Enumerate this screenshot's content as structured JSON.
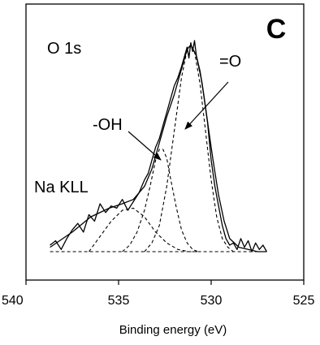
{
  "chart_data": {
    "type": "line",
    "panel_label": "C",
    "title": "O 1s",
    "xlabel": "Binding energy (eV)",
    "ylabel": "",
    "xlim": [
      540,
      525
    ],
    "ylim": [
      0,
      1
    ],
    "x_ticks": [
      540,
      535,
      530,
      525
    ],
    "grid": false,
    "annotations": [
      {
        "id": "oh",
        "text": "-OH",
        "points_to": [
          532.8,
          0.42
        ]
      },
      {
        "id": "eq-o",
        "text": "=O",
        "points_to": [
          531.1,
          0.58
        ]
      },
      {
        "id": "na-kll",
        "text": "Na KLL"
      }
    ],
    "series": [
      {
        "style": "solid",
        "x": [
          538.7,
          538.4,
          538.1,
          537.8,
          537.5,
          537.2,
          536.9,
          536.6,
          536.3,
          536.0,
          535.7,
          535.4,
          535.1,
          534.8,
          534.5,
          534.2,
          533.9,
          533.6,
          533.4,
          533.2,
          533.0,
          532.8,
          532.6,
          532.4,
          532.2,
          532.0,
          531.8,
          531.6,
          531.4,
          531.3,
          531.2,
          531.1,
          531.0,
          530.9,
          530.8,
          530.6,
          530.4,
          530.2,
          530.0,
          529.8,
          529.6,
          529.4,
          529.2,
          529.0,
          528.8,
          528.6,
          528.4,
          528.2,
          528.0,
          527.8,
          527.6,
          527.4,
          527.2,
          527.0
        ],
        "values": [
          0.03,
          0.05,
          0.01,
          0.06,
          0.1,
          0.13,
          0.09,
          0.17,
          0.14,
          0.22,
          0.18,
          0.21,
          0.2,
          0.24,
          0.19,
          0.23,
          0.27,
          0.33,
          0.36,
          0.42,
          0.48,
          0.52,
          0.58,
          0.64,
          0.7,
          0.76,
          0.8,
          0.85,
          0.91,
          0.94,
          0.89,
          0.96,
          0.92,
          0.97,
          0.9,
          0.83,
          0.72,
          0.6,
          0.42,
          0.3,
          0.21,
          0.12,
          0.06,
          0.03,
          0.04,
          0.01,
          0.06,
          0.02,
          0.05,
          0.0,
          0.04,
          0.01,
          0.03,
          0.0
        ]
      },
      {
        "style": "solid",
        "x": [
          538.7,
          537.5,
          536.5,
          535.5,
          534.8,
          534.2,
          533.6,
          533.2,
          532.8,
          532.4,
          532.0,
          531.6,
          531.3,
          531.1,
          530.8,
          530.5,
          530.2,
          529.9,
          529.6,
          529.3,
          529.0,
          528.5,
          528.0,
          527.5,
          527.0
        ],
        "values": [
          0.02,
          0.09,
          0.16,
          0.2,
          0.22,
          0.24,
          0.3,
          0.38,
          0.5,
          0.62,
          0.72,
          0.84,
          0.93,
          0.95,
          0.9,
          0.78,
          0.6,
          0.42,
          0.26,
          0.14,
          0.06,
          0.02,
          0.01,
          0.0,
          0.0
        ]
      },
      {
        "style": "dashed",
        "x": [
          536.6,
          536.0,
          535.4,
          534.8,
          534.2,
          533.6,
          533.0,
          532.4,
          531.8,
          531.2,
          530.6
        ],
        "values": [
          0.0,
          0.07,
          0.14,
          0.19,
          0.2,
          0.16,
          0.09,
          0.04,
          0.01,
          0.0,
          0.0
        ]
      },
      {
        "style": "dashed",
        "x": [
          534.8,
          534.4,
          534.0,
          533.6,
          533.3,
          533.0,
          532.8,
          532.6,
          532.4,
          532.2,
          531.9,
          531.6,
          531.3,
          531.0,
          530.7
        ],
        "values": [
          0.0,
          0.03,
          0.09,
          0.19,
          0.3,
          0.42,
          0.47,
          0.47,
          0.43,
          0.34,
          0.21,
          0.1,
          0.04,
          0.01,
          0.0
        ]
      },
      {
        "style": "dashed",
        "x": [
          533.6,
          533.2,
          532.8,
          532.4,
          532.0,
          531.6,
          531.3,
          531.1,
          530.9,
          530.6,
          530.3,
          530.0,
          529.7,
          529.4,
          529.1,
          528.8
        ],
        "values": [
          0.0,
          0.04,
          0.12,
          0.3,
          0.55,
          0.8,
          0.93,
          0.95,
          0.92,
          0.77,
          0.55,
          0.33,
          0.16,
          0.06,
          0.02,
          0.0
        ]
      },
      {
        "style": "dashed",
        "x": [
          538.7,
          527.0
        ],
        "values": [
          0.0,
          0.0
        ]
      }
    ]
  }
}
